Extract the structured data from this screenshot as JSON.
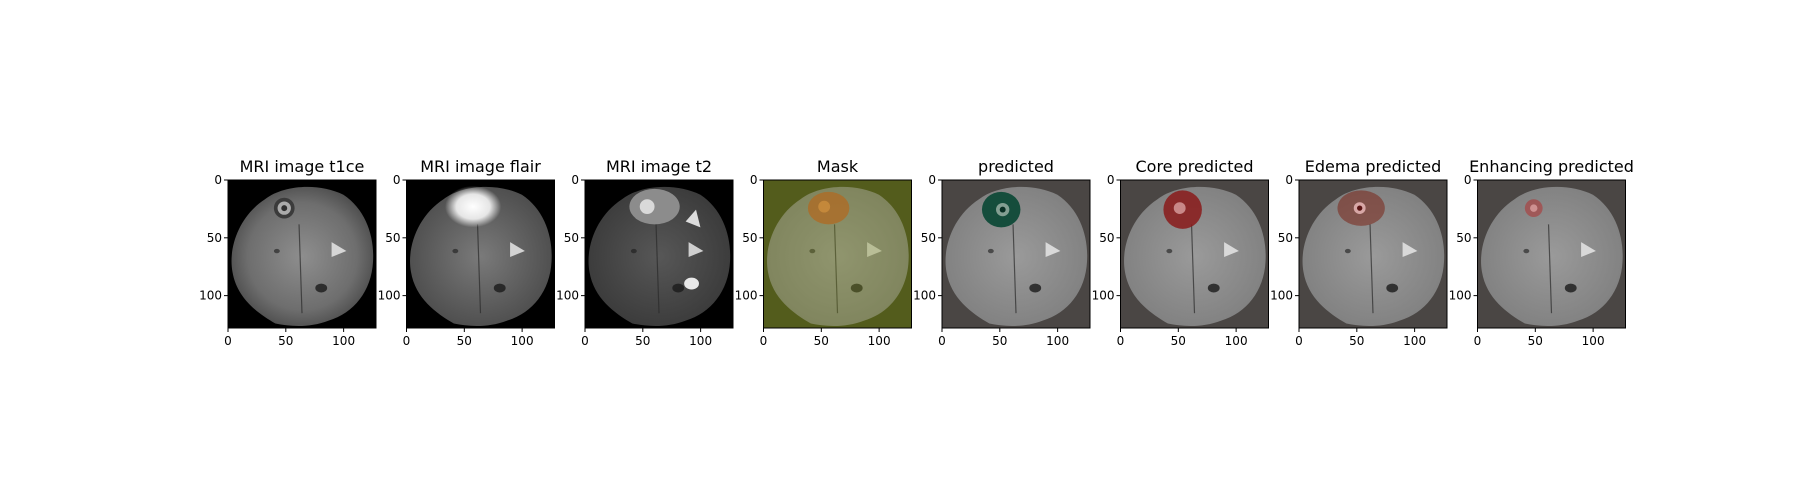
{
  "chart_data": {
    "type": "image-grid",
    "axis_range": {
      "x": [
        0,
        128
      ],
      "y": [
        0,
        128
      ]
    },
    "x_ticks": [
      "0",
      "50",
      "100"
    ],
    "y_ticks": [
      "0",
      "50",
      "100"
    ],
    "tick_values": [
      0,
      50,
      100
    ],
    "panels": [
      {
        "title": "MRI image t1ce",
        "kind": "t1ce",
        "overlay": null
      },
      {
        "title": "MRI image flair",
        "kind": "flair",
        "overlay": null
      },
      {
        "title": "MRI image t2",
        "kind": "t2",
        "overlay": null
      },
      {
        "title": "Mask",
        "kind": "mask",
        "overlay": "#6b7a1e"
      },
      {
        "title": "predicted",
        "kind": "pred",
        "overlay": "#0f4a38"
      },
      {
        "title": "Core predicted",
        "kind": "core",
        "overlay": "#8a1a1a"
      },
      {
        "title": "Edema predicted",
        "kind": "edema",
        "overlay": "#7a2418"
      },
      {
        "title": "Enhancing predicted",
        "kind": "enh",
        "overlay": "#b03030"
      }
    ]
  }
}
